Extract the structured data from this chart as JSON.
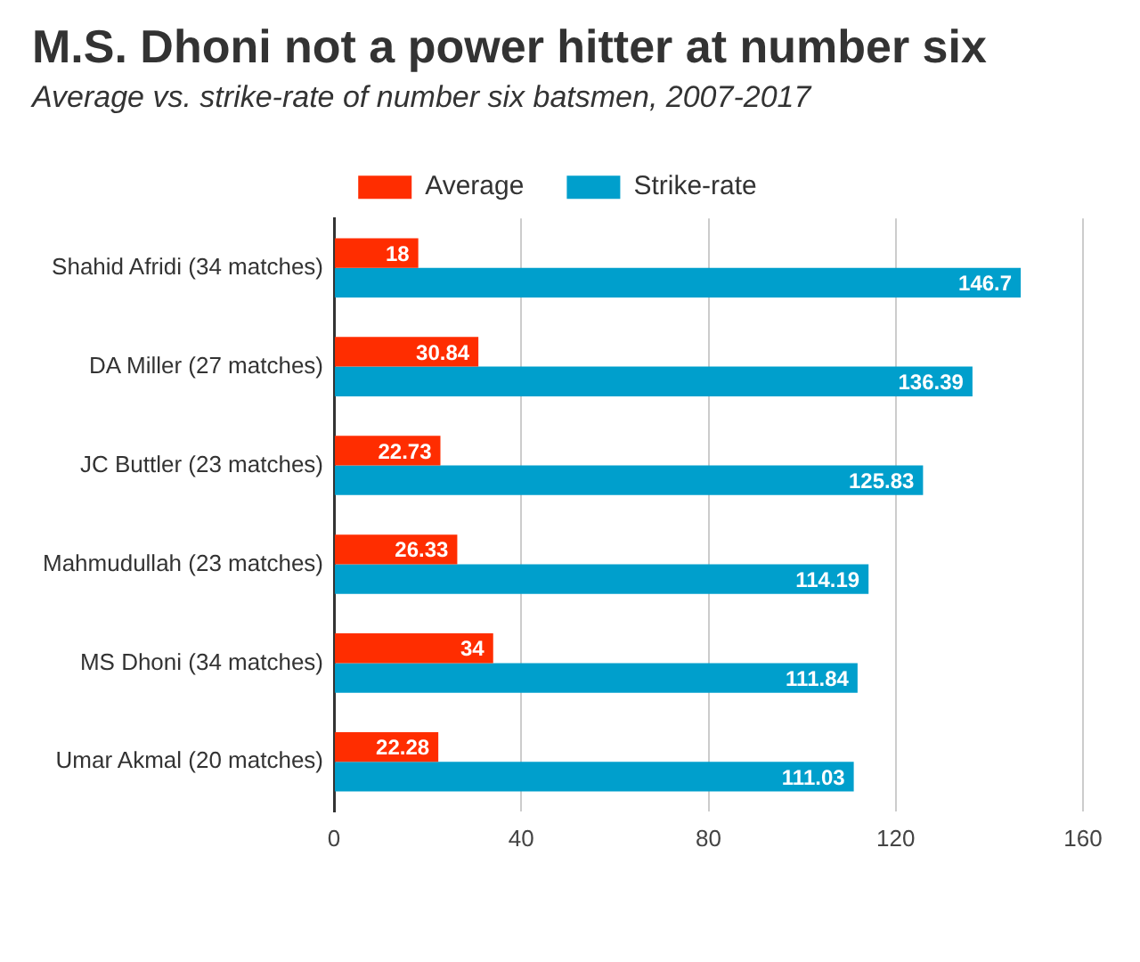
{
  "chart_data": {
    "type": "bar",
    "orientation": "horizontal",
    "title": "M.S. Dhoni not a power hitter at number six",
    "subtitle": "Average vs. strike-rate of number six batsmen, 2007-2017",
    "categories": [
      "Shahid Afridi (34 matches)",
      "DA Miller (27 matches)",
      "JC Buttler (23 matches)",
      "Mahmudullah (23 matches)",
      "MS Dhoni (34 matches)",
      "Umar Akmal (20 matches)"
    ],
    "series": [
      {
        "name": "Average",
        "color": "#ff2d00",
        "values": [
          18,
          30.84,
          22.73,
          26.33,
          34,
          22.28
        ]
      },
      {
        "name": "Strike-rate",
        "color": "#009fcc",
        "values": [
          146.7,
          136.39,
          125.83,
          114.19,
          111.84,
          111.03
        ]
      }
    ],
    "xlim": [
      0,
      160
    ],
    "xticks": [
      0,
      40,
      80,
      120,
      160
    ],
    "grid": "x",
    "legend": "top",
    "data_labels": true
  }
}
